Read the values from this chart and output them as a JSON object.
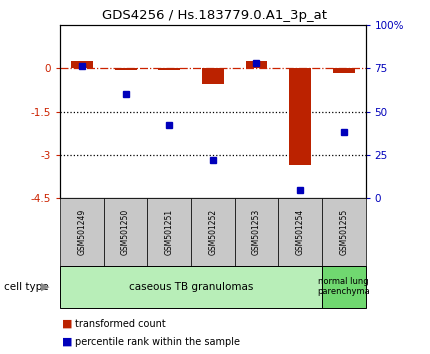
{
  "title": "GDS4256 / Hs.183779.0.A1_3p_at",
  "samples": [
    "GSM501249",
    "GSM501250",
    "GSM501251",
    "GSM501252",
    "GSM501253",
    "GSM501254",
    "GSM501255"
  ],
  "transformed_count": [
    0.25,
    -0.05,
    -0.08,
    -0.55,
    0.25,
    -3.35,
    -0.18
  ],
  "percentile_rank": [
    76,
    60,
    42,
    22,
    78,
    5,
    38
  ],
  "ylim_left": [
    -4.5,
    1.5
  ],
  "ylim_right": [
    0,
    100
  ],
  "bar_color_red": "#bb2200",
  "bar_color_blue": "#0000bb",
  "zero_line_color": "#cc2200",
  "dotted_line_color": "#000000",
  "tick_label_color_left": "#cc2200",
  "tick_label_color_right": "#0000bb",
  "legend_items": [
    "transformed count",
    "percentile rank within the sample"
  ],
  "cell_type_label": "cell type",
  "ct_green_light": "#b8eeb8",
  "ct_green_dark": "#70d870",
  "sample_box_color": "#c8c8c8"
}
